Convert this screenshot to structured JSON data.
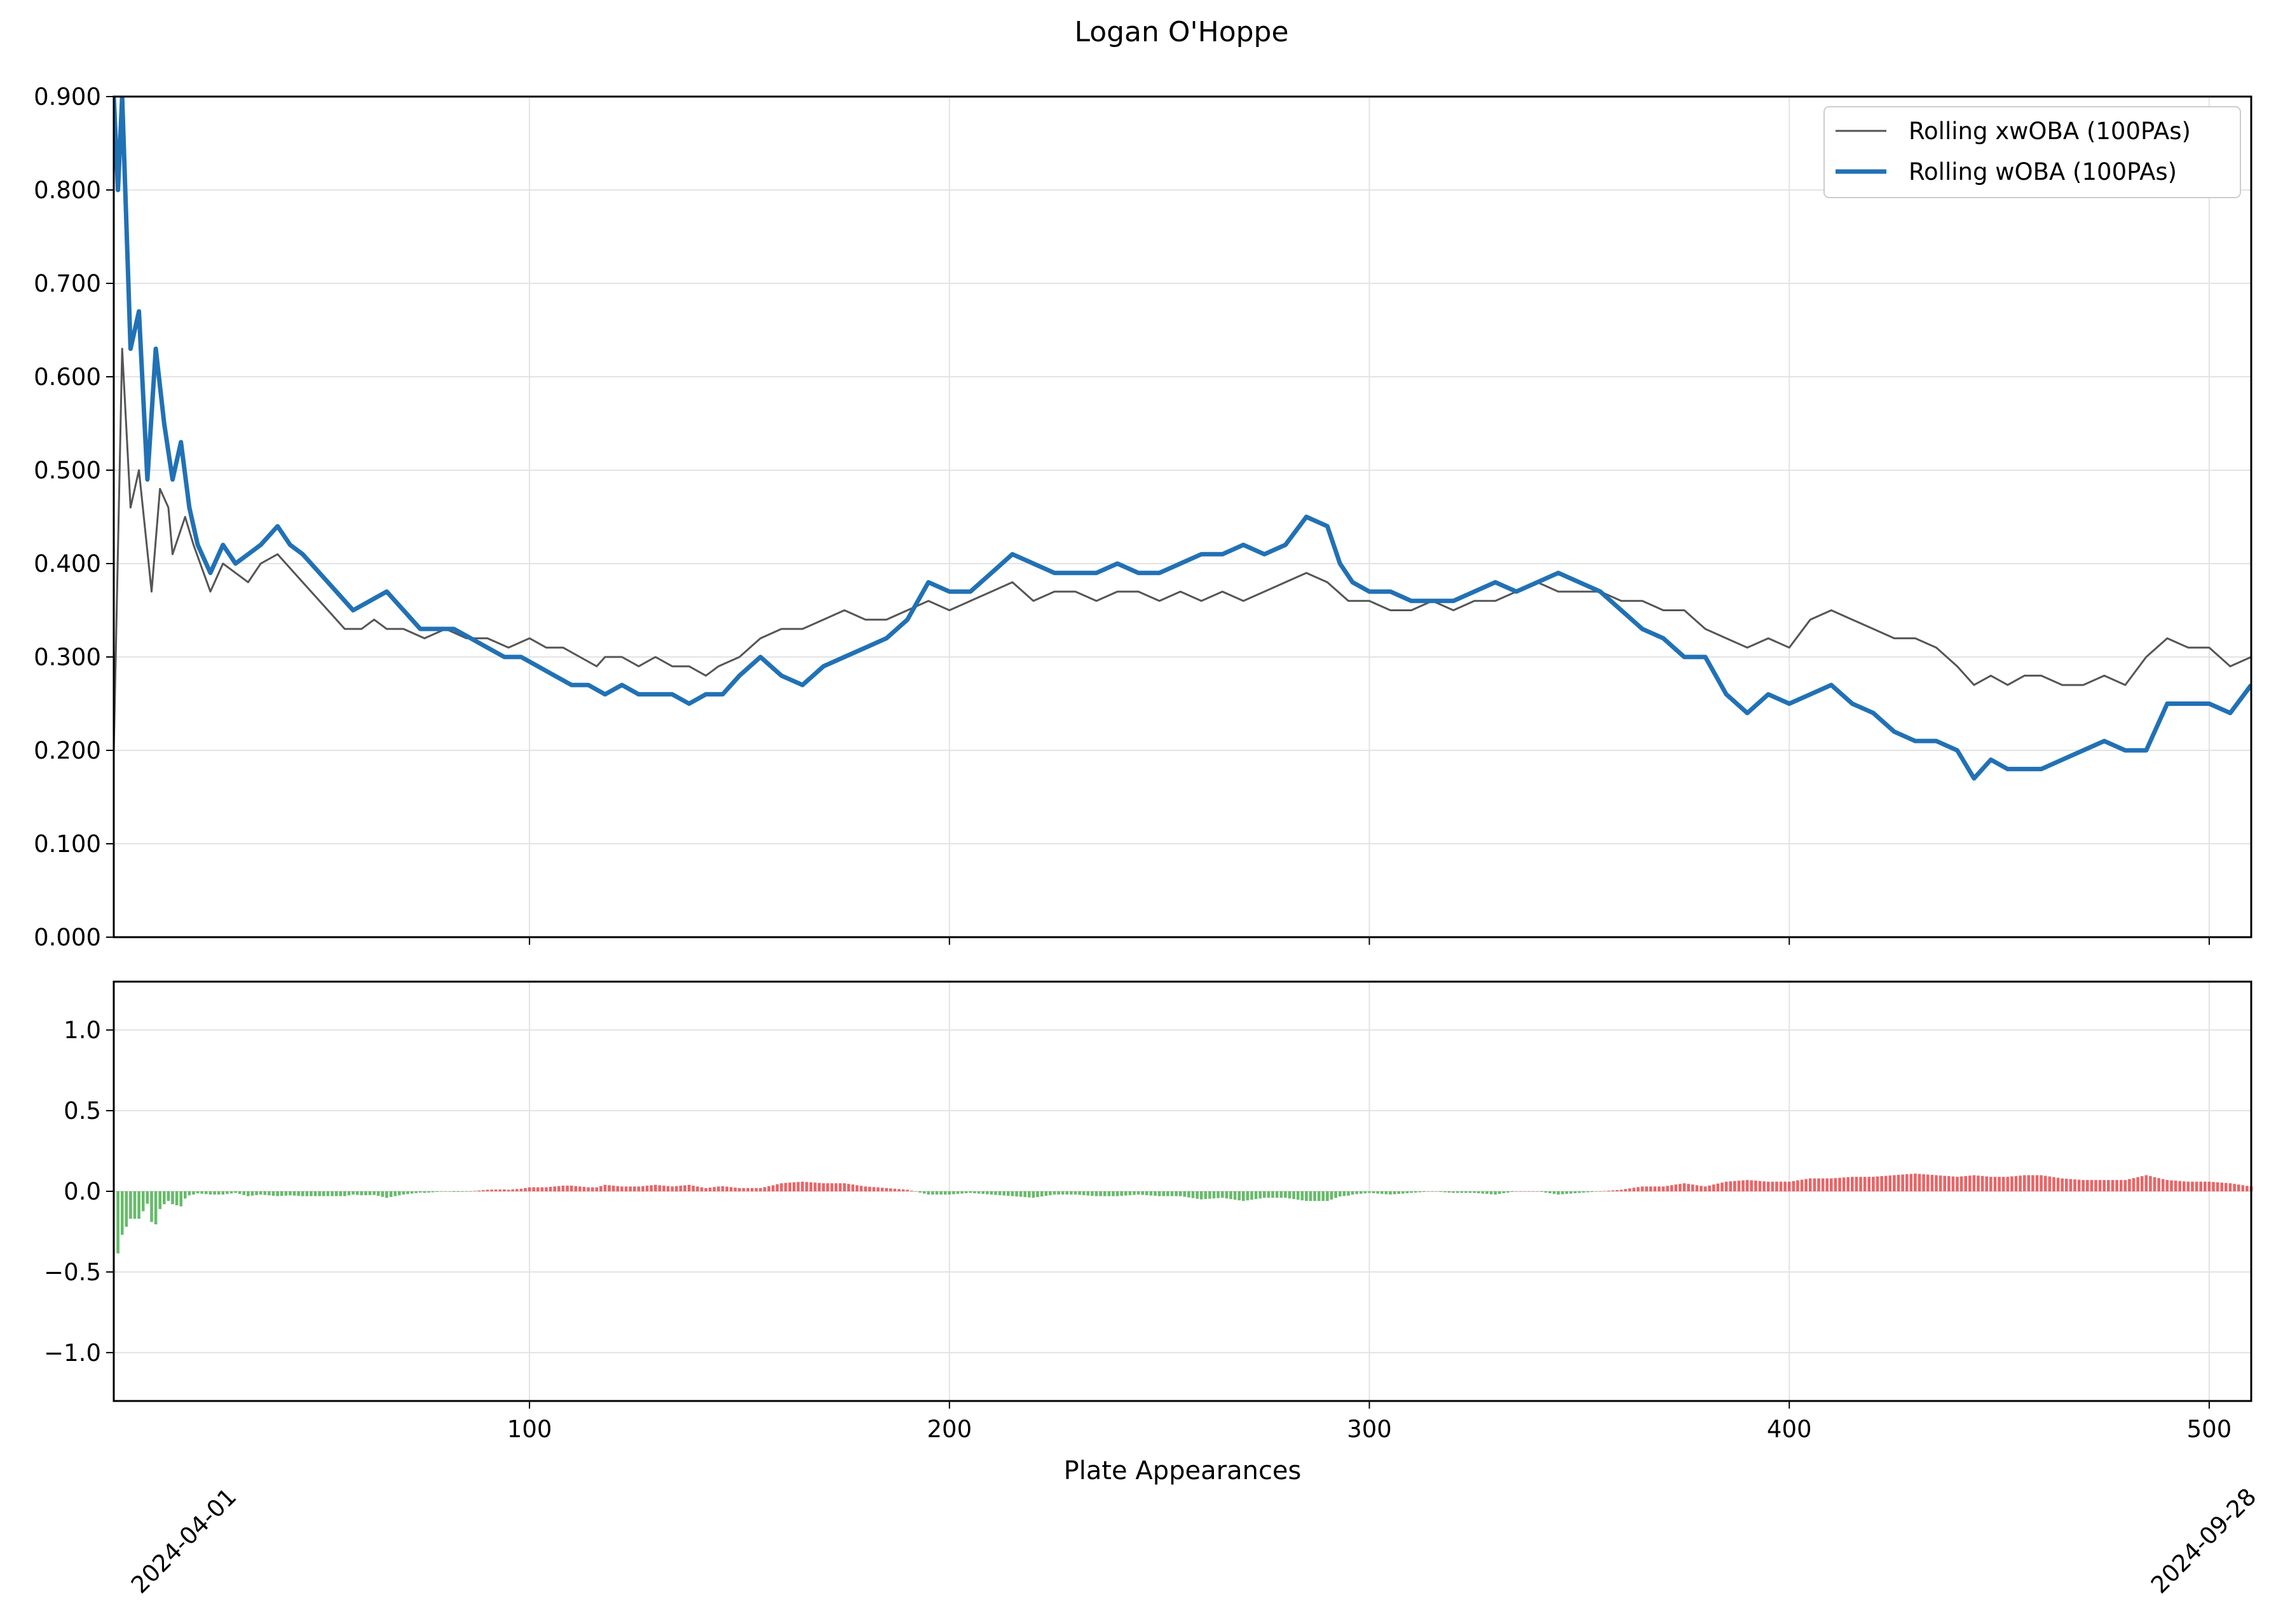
{
  "chart_data": [
    {
      "type": "line",
      "title": "Logan O'Hoppe",
      "xlabel": "",
      "ylabel": "",
      "xlim": [
        1,
        510
      ],
      "ylim": [
        0,
        0.9
      ],
      "yticks": [
        "0.000",
        "0.100",
        "0.200",
        "0.300",
        "0.400",
        "0.500",
        "0.600",
        "0.700",
        "0.800",
        "0.900"
      ],
      "grid": true,
      "legend_position": "upper right",
      "series": [
        {
          "name": "Rolling xwOBA (100PAs)",
          "color": "#555555",
          "points": [
            [
              1,
              0.2
            ],
            [
              3,
              0.63
            ],
            [
              5,
              0.46
            ],
            [
              7,
              0.5
            ],
            [
              10,
              0.37
            ],
            [
              12,
              0.48
            ],
            [
              14,
              0.46
            ],
            [
              15,
              0.41
            ],
            [
              18,
              0.45
            ],
            [
              20,
              0.42
            ],
            [
              24,
              0.37
            ],
            [
              27,
              0.4
            ],
            [
              30,
              0.39
            ],
            [
              33,
              0.38
            ],
            [
              36,
              0.4
            ],
            [
              40,
              0.41
            ],
            [
              44,
              0.39
            ],
            [
              48,
              0.37
            ],
            [
              52,
              0.35
            ],
            [
              56,
              0.33
            ],
            [
              60,
              0.33
            ],
            [
              63,
              0.34
            ],
            [
              66,
              0.33
            ],
            [
              70,
              0.33
            ],
            [
              75,
              0.32
            ],
            [
              80,
              0.33
            ],
            [
              85,
              0.32
            ],
            [
              90,
              0.32
            ],
            [
              95,
              0.31
            ],
            [
              100,
              0.32
            ],
            [
              104,
              0.31
            ],
            [
              108,
              0.31
            ],
            [
              112,
              0.3
            ],
            [
              116,
              0.29
            ],
            [
              118,
              0.3
            ],
            [
              122,
              0.3
            ],
            [
              126,
              0.29
            ],
            [
              130,
              0.3
            ],
            [
              134,
              0.29
            ],
            [
              138,
              0.29
            ],
            [
              142,
              0.28
            ],
            [
              145,
              0.29
            ],
            [
              150,
              0.3
            ],
            [
              155,
              0.32
            ],
            [
              160,
              0.33
            ],
            [
              165,
              0.33
            ],
            [
              170,
              0.34
            ],
            [
              175,
              0.35
            ],
            [
              180,
              0.34
            ],
            [
              185,
              0.34
            ],
            [
              190,
              0.35
            ],
            [
              195,
              0.36
            ],
            [
              200,
              0.35
            ],
            [
              205,
              0.36
            ],
            [
              210,
              0.37
            ],
            [
              215,
              0.38
            ],
            [
              220,
              0.36
            ],
            [
              225,
              0.37
            ],
            [
              230,
              0.37
            ],
            [
              235,
              0.36
            ],
            [
              240,
              0.37
            ],
            [
              245,
              0.37
            ],
            [
              250,
              0.36
            ],
            [
              255,
              0.37
            ],
            [
              260,
              0.36
            ],
            [
              265,
              0.37
            ],
            [
              270,
              0.36
            ],
            [
              275,
              0.37
            ],
            [
              280,
              0.38
            ],
            [
              285,
              0.39
            ],
            [
              290,
              0.38
            ],
            [
              295,
              0.36
            ],
            [
              300,
              0.36
            ],
            [
              305,
              0.35
            ],
            [
              310,
              0.35
            ],
            [
              315,
              0.36
            ],
            [
              320,
              0.35
            ],
            [
              325,
              0.36
            ],
            [
              330,
              0.36
            ],
            [
              335,
              0.37
            ],
            [
              340,
              0.38
            ],
            [
              345,
              0.37
            ],
            [
              350,
              0.37
            ],
            [
              355,
              0.37
            ],
            [
              360,
              0.36
            ],
            [
              365,
              0.36
            ],
            [
              370,
              0.35
            ],
            [
              375,
              0.35
            ],
            [
              380,
              0.33
            ],
            [
              385,
              0.32
            ],
            [
              390,
              0.31
            ],
            [
              395,
              0.32
            ],
            [
              400,
              0.31
            ],
            [
              405,
              0.34
            ],
            [
              410,
              0.35
            ],
            [
              415,
              0.34
            ],
            [
              420,
              0.33
            ],
            [
              425,
              0.32
            ],
            [
              430,
              0.32
            ],
            [
              435,
              0.31
            ],
            [
              440,
              0.29
            ],
            [
              444,
              0.27
            ],
            [
              448,
              0.28
            ],
            [
              452,
              0.27
            ],
            [
              456,
              0.28
            ],
            [
              460,
              0.28
            ],
            [
              465,
              0.27
            ],
            [
              470,
              0.27
            ],
            [
              475,
              0.28
            ],
            [
              480,
              0.27
            ],
            [
              485,
              0.3
            ],
            [
              490,
              0.32
            ],
            [
              495,
              0.31
            ],
            [
              500,
              0.31
            ],
            [
              505,
              0.29
            ],
            [
              510,
              0.3
            ]
          ]
        },
        {
          "name": "Rolling wOBA (100PAs)",
          "color": "#2171b5",
          "points": [
            [
              1,
              0.9
            ],
            [
              2,
              0.8
            ],
            [
              3,
              0.9
            ],
            [
              5,
              0.63
            ],
            [
              7,
              0.67
            ],
            [
              9,
              0.49
            ],
            [
              11,
              0.63
            ],
            [
              13,
              0.55
            ],
            [
              15,
              0.49
            ],
            [
              17,
              0.53
            ],
            [
              19,
              0.46
            ],
            [
              21,
              0.42
            ],
            [
              24,
              0.39
            ],
            [
              27,
              0.42
            ],
            [
              30,
              0.4
            ],
            [
              33,
              0.41
            ],
            [
              36,
              0.42
            ],
            [
              40,
              0.44
            ],
            [
              43,
              0.42
            ],
            [
              46,
              0.41
            ],
            [
              50,
              0.39
            ],
            [
              54,
              0.37
            ],
            [
              58,
              0.35
            ],
            [
              62,
              0.36
            ],
            [
              66,
              0.37
            ],
            [
              70,
              0.35
            ],
            [
              74,
              0.33
            ],
            [
              78,
              0.33
            ],
            [
              82,
              0.33
            ],
            [
              86,
              0.32
            ],
            [
              90,
              0.31
            ],
            [
              94,
              0.3
            ],
            [
              98,
              0.3
            ],
            [
              102,
              0.29
            ],
            [
              106,
              0.28
            ],
            [
              110,
              0.27
            ],
            [
              114,
              0.27
            ],
            [
              118,
              0.26
            ],
            [
              122,
              0.27
            ],
            [
              126,
              0.26
            ],
            [
              130,
              0.26
            ],
            [
              134,
              0.26
            ],
            [
              138,
              0.25
            ],
            [
              142,
              0.26
            ],
            [
              146,
              0.26
            ],
            [
              150,
              0.28
            ],
            [
              155,
              0.3
            ],
            [
              160,
              0.28
            ],
            [
              165,
              0.27
            ],
            [
              170,
              0.29
            ],
            [
              175,
              0.3
            ],
            [
              180,
              0.31
            ],
            [
              185,
              0.32
            ],
            [
              190,
              0.34
            ],
            [
              195,
              0.38
            ],
            [
              200,
              0.37
            ],
            [
              205,
              0.37
            ],
            [
              210,
              0.39
            ],
            [
              215,
              0.41
            ],
            [
              220,
              0.4
            ],
            [
              225,
              0.39
            ],
            [
              230,
              0.39
            ],
            [
              235,
              0.39
            ],
            [
              240,
              0.4
            ],
            [
              245,
              0.39
            ],
            [
              250,
              0.39
            ],
            [
              255,
              0.4
            ],
            [
              260,
              0.41
            ],
            [
              265,
              0.41
            ],
            [
              270,
              0.42
            ],
            [
              275,
              0.41
            ],
            [
              280,
              0.42
            ],
            [
              285,
              0.45
            ],
            [
              290,
              0.44
            ],
            [
              293,
              0.4
            ],
            [
              296,
              0.38
            ],
            [
              300,
              0.37
            ],
            [
              305,
              0.37
            ],
            [
              310,
              0.36
            ],
            [
              315,
              0.36
            ],
            [
              320,
              0.36
            ],
            [
              325,
              0.37
            ],
            [
              330,
              0.38
            ],
            [
              335,
              0.37
            ],
            [
              340,
              0.38
            ],
            [
              345,
              0.39
            ],
            [
              350,
              0.38
            ],
            [
              355,
              0.37
            ],
            [
              360,
              0.35
            ],
            [
              365,
              0.33
            ],
            [
              370,
              0.32
            ],
            [
              375,
              0.3
            ],
            [
              380,
              0.3
            ],
            [
              385,
              0.26
            ],
            [
              390,
              0.24
            ],
            [
              395,
              0.26
            ],
            [
              400,
              0.25
            ],
            [
              405,
              0.26
            ],
            [
              410,
              0.27
            ],
            [
              415,
              0.25
            ],
            [
              420,
              0.24
            ],
            [
              425,
              0.22
            ],
            [
              430,
              0.21
            ],
            [
              435,
              0.21
            ],
            [
              440,
              0.2
            ],
            [
              444,
              0.17
            ],
            [
              448,
              0.19
            ],
            [
              452,
              0.18
            ],
            [
              456,
              0.18
            ],
            [
              460,
              0.18
            ],
            [
              465,
              0.19
            ],
            [
              470,
              0.2
            ],
            [
              475,
              0.21
            ],
            [
              480,
              0.2
            ],
            [
              485,
              0.2
            ],
            [
              490,
              0.25
            ],
            [
              495,
              0.25
            ],
            [
              500,
              0.25
            ],
            [
              505,
              0.24
            ],
            [
              510,
              0.27
            ]
          ]
        }
      ]
    },
    {
      "type": "bar",
      "title": "",
      "xlabel": "Plate Appearances",
      "ylabel": "",
      "xlim": [
        1,
        510
      ],
      "ylim": [
        -1.3,
        1.3
      ],
      "yticks": [
        "−1.0",
        "−0.5",
        "0.0",
        "0.5",
        "1.0"
      ],
      "xticks": [
        "100",
        "200",
        "300",
        "400",
        "500"
      ],
      "date_labels": [
        "2024-04-01",
        "2024-09-28"
      ],
      "grid": true,
      "positive_color": "#e8494b",
      "negative_color": "#4caf50",
      "note": "bar value = xwOBA minus wOBA at each plate appearance"
    }
  ]
}
